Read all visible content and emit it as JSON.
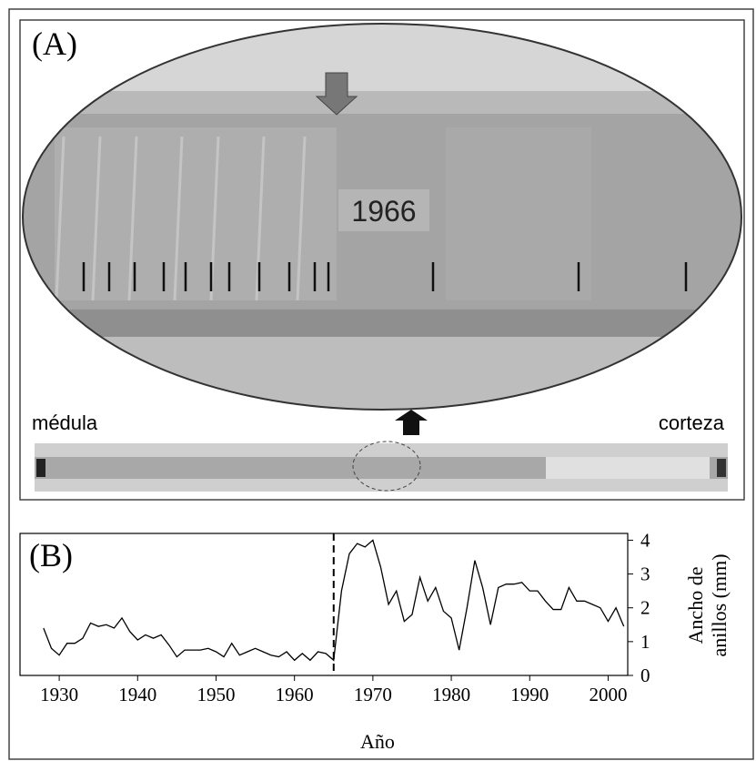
{
  "photo_panel": {
    "label": "(A)",
    "year_label": "1966",
    "left_label": "médula",
    "right_label": "corteza"
  },
  "chart_data": {
    "type": "line",
    "label": "(B)",
    "x_label": "Año",
    "y_label_lines": [
      "Ancho de",
      "anillos (mm)"
    ],
    "x": [
      1928,
      1929,
      1930,
      1931,
      1932,
      1933,
      1934,
      1935,
      1936,
      1937,
      1938,
      1939,
      1940,
      1941,
      1942,
      1943,
      1944,
      1945,
      1946,
      1947,
      1948,
      1949,
      1950,
      1951,
      1952,
      1953,
      1954,
      1955,
      1956,
      1957,
      1958,
      1959,
      1960,
      1961,
      1962,
      1963,
      1964,
      1965,
      1966,
      1967,
      1968,
      1969,
      1970,
      1971,
      1972,
      1973,
      1974,
      1975,
      1976,
      1977,
      1978,
      1979,
      1980,
      1981,
      1982,
      1983,
      1984,
      1985,
      1986,
      1987,
      1988,
      1989,
      1990,
      1991,
      1992,
      1993,
      1994,
      1995,
      1996,
      1997,
      1998,
      1999,
      2000,
      2001,
      2002
    ],
    "values": [
      1.4,
      0.8,
      0.6,
      0.95,
      0.95,
      1.1,
      1.55,
      1.45,
      1.5,
      1.4,
      1.7,
      1.3,
      1.05,
      1.2,
      1.1,
      1.2,
      0.9,
      0.55,
      0.75,
      0.75,
      0.75,
      0.8,
      0.7,
      0.55,
      0.95,
      0.6,
      0.7,
      0.8,
      0.7,
      0.6,
      0.55,
      0.7,
      0.45,
      0.65,
      0.45,
      0.7,
      0.65,
      0.45,
      2.5,
      3.6,
      3.9,
      3.8,
      4.0,
      3.2,
      2.1,
      2.5,
      1.6,
      1.8,
      2.9,
      2.2,
      2.6,
      1.9,
      1.7,
      0.75,
      2.0,
      3.4,
      2.6,
      1.5,
      2.6,
      2.7,
      2.7,
      2.75,
      2.5,
      2.5,
      2.2,
      1.95,
      1.95,
      2.6,
      2.2,
      2.2,
      2.1,
      2.0,
      1.6,
      2.0,
      1.45
    ],
    "color": "#000000",
    "xlim": [
      1925,
      2002.5
    ],
    "ylim": [
      0,
      4.2
    ],
    "xticks": [
      1930,
      1940,
      1950,
      1960,
      1970,
      1980,
      1990,
      2000
    ],
    "yticks": [
      0,
      1,
      2,
      3,
      4
    ],
    "marker_x": 1965
  }
}
